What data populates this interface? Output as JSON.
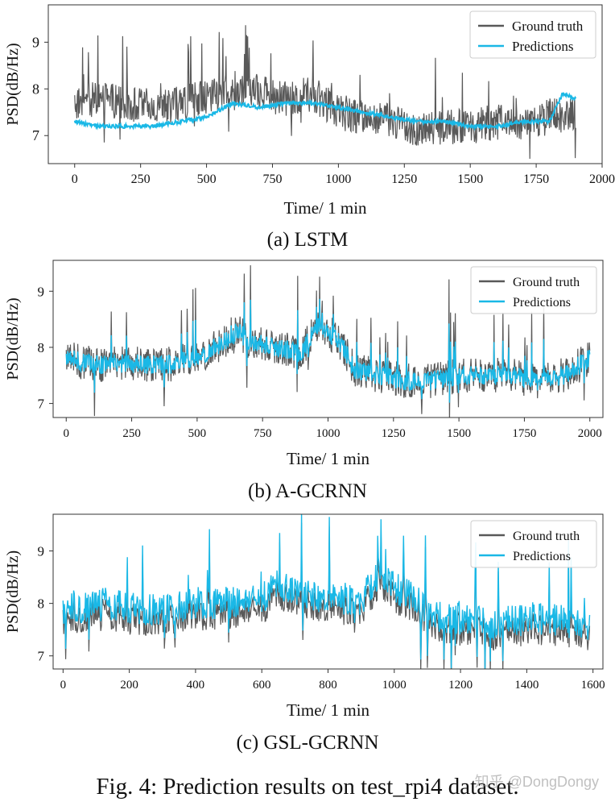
{
  "figure_caption": "Fig. 4: Prediction results on test_rpi4 dataset.",
  "watermark": "知乎 @DongDongy",
  "chart_data": [
    {
      "type": "line",
      "subcaption": "(a) LSTM",
      "xlabel": "Time/ 1 min",
      "ylabel": "PSD(dB/Hz)",
      "xlim": [
        -100,
        2000
      ],
      "ylim": [
        6.4,
        9.8
      ],
      "xticks": [
        0,
        250,
        500,
        750,
        1000,
        1250,
        1500,
        1750,
        2000
      ],
      "yticks": [
        7,
        8,
        9
      ],
      "legend": {
        "position": "upper-right",
        "entries": [
          "Ground truth",
          "Predictions"
        ]
      },
      "colors": {
        "ground_truth": "#595959",
        "predictions": "#1ab8e6"
      },
      "series": [
        {
          "name": "Ground truth",
          "x": [
            0,
            100,
            200,
            300,
            400,
            500,
            600,
            700,
            800,
            900,
            1000,
            1100,
            1200,
            1300,
            1400,
            1500,
            1600,
            1700,
            1800,
            1900
          ],
          "values": [
            7.7,
            7.8,
            7.7,
            7.6,
            7.7,
            7.8,
            8.0,
            8.0,
            7.8,
            7.9,
            7.5,
            7.4,
            7.3,
            7.1,
            7.2,
            7.2,
            7.3,
            7.2,
            7.4,
            7.5
          ]
        },
        {
          "name": "Predictions",
          "x": [
            0,
            100,
            200,
            300,
            400,
            500,
            600,
            700,
            800,
            900,
            1000,
            1100,
            1200,
            1300,
            1400,
            1500,
            1600,
            1700,
            1800,
            1850,
            1900
          ],
          "values": [
            7.3,
            7.2,
            7.2,
            7.2,
            7.3,
            7.4,
            7.7,
            7.6,
            7.7,
            7.7,
            7.6,
            7.5,
            7.4,
            7.3,
            7.3,
            7.2,
            7.2,
            7.3,
            7.3,
            7.9,
            7.8
          ]
        }
      ]
    },
    {
      "type": "line",
      "subcaption": "(b) A-GCRNN",
      "xlabel": "Time/ 1 min",
      "ylabel": "PSD(dB/Hz)",
      "xlim": [
        -50,
        2050
      ],
      "ylim": [
        6.75,
        9.55
      ],
      "xticks": [
        0,
        250,
        500,
        750,
        1000,
        1250,
        1500,
        1750,
        2000
      ],
      "yticks": [
        7,
        8,
        9
      ],
      "legend": {
        "position": "upper-right",
        "entries": [
          "Ground truth",
          "Predictions"
        ]
      },
      "colors": {
        "ground_truth": "#595959",
        "predictions": "#1ab8e6"
      },
      "series": [
        {
          "name": "Ground truth",
          "x": [
            0,
            100,
            200,
            300,
            400,
            500,
            600,
            650,
            700,
            800,
            900,
            960,
            1000,
            1060,
            1100,
            1200,
            1300,
            1400,
            1500,
            1600,
            1700,
            1800,
            1900,
            2000
          ],
          "values": [
            7.8,
            7.7,
            7.7,
            7.7,
            7.7,
            7.8,
            8.1,
            8.3,
            8.1,
            8.0,
            7.9,
            8.4,
            8.3,
            8.0,
            7.6,
            7.5,
            7.4,
            7.4,
            7.5,
            7.5,
            7.5,
            7.4,
            7.5,
            7.8
          ]
        },
        {
          "name": "Predictions",
          "x": [
            0,
            100,
            200,
            300,
            400,
            500,
            600,
            650,
            700,
            800,
            900,
            960,
            1000,
            1060,
            1100,
            1200,
            1300,
            1400,
            1500,
            1600,
            1700,
            1800,
            1900,
            2000
          ],
          "values": [
            7.8,
            7.7,
            7.7,
            7.7,
            7.7,
            7.8,
            8.1,
            8.3,
            8.1,
            8.0,
            7.9,
            8.4,
            8.3,
            8.0,
            7.6,
            7.5,
            7.4,
            7.4,
            7.5,
            7.5,
            7.5,
            7.4,
            7.5,
            7.8
          ]
        }
      ]
    },
    {
      "type": "line",
      "subcaption": "(c) GSL-GCRNN",
      "xlabel": "Time/ 1 min",
      "ylabel": "PSD(dB/Hz)",
      "xlim": [
        -30,
        1630
      ],
      "ylim": [
        6.75,
        9.7
      ],
      "xticks": [
        0,
        200,
        400,
        600,
        800,
        1000,
        1200,
        1400,
        1600
      ],
      "yticks": [
        7,
        8,
        9
      ],
      "legend": {
        "position": "upper-right",
        "entries": [
          "Ground truth",
          "Predictions"
        ]
      },
      "colors": {
        "ground_truth": "#595959",
        "predictions": "#1ab8e6"
      },
      "series": [
        {
          "name": "Ground truth",
          "x": [
            0,
            100,
            200,
            300,
            400,
            500,
            600,
            650,
            700,
            800,
            900,
            960,
            1000,
            1060,
            1100,
            1200,
            1300,
            1400,
            1500,
            1590
          ],
          "values": [
            7.7,
            7.8,
            7.7,
            7.7,
            7.8,
            7.8,
            7.9,
            8.2,
            8.0,
            7.9,
            7.9,
            8.4,
            8.1,
            7.9,
            7.6,
            7.5,
            7.4,
            7.5,
            7.5,
            7.4
          ]
        },
        {
          "name": "Predictions",
          "x": [
            0,
            100,
            200,
            300,
            400,
            500,
            600,
            650,
            700,
            800,
            900,
            960,
            1000,
            1060,
            1100,
            1200,
            1300,
            1400,
            1500,
            1590
          ],
          "values": [
            7.9,
            8.0,
            7.9,
            7.9,
            8.0,
            8.0,
            8.1,
            8.4,
            8.2,
            8.1,
            8.1,
            8.6,
            8.3,
            8.1,
            7.8,
            7.7,
            7.6,
            7.7,
            7.7,
            7.6
          ]
        }
      ]
    }
  ]
}
